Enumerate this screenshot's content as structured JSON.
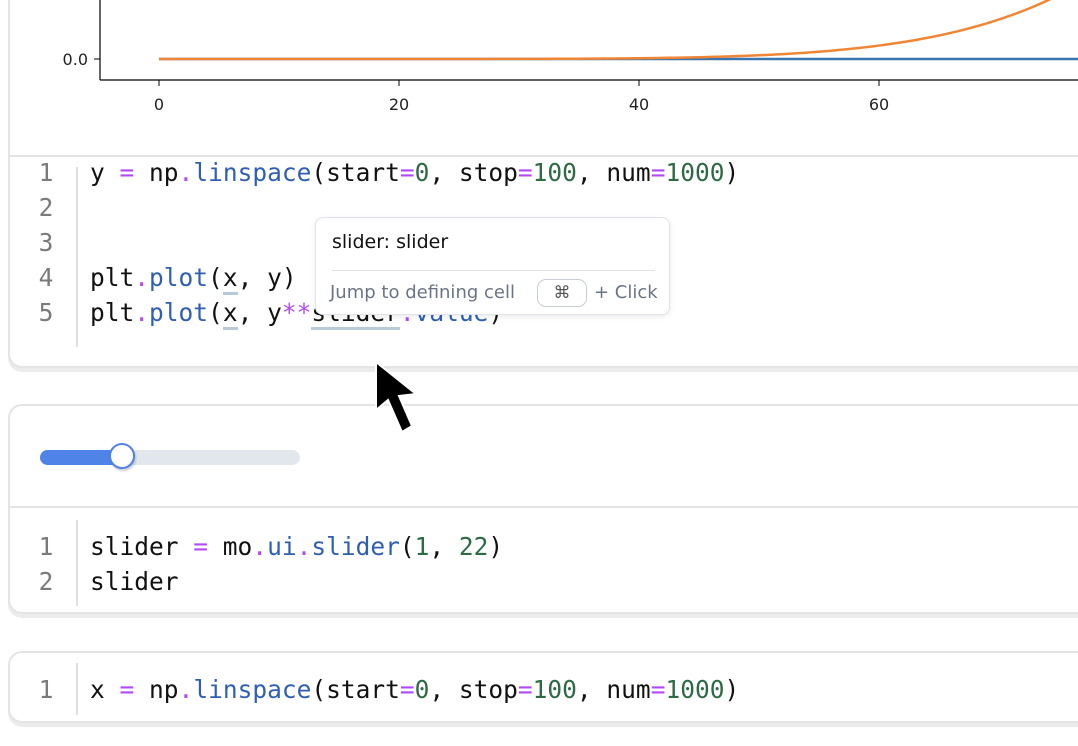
{
  "plot_cell": {
    "chart_data": {
      "type": "line",
      "x_ticks": [
        "0",
        "20",
        "40",
        "60"
      ],
      "y_ticks": [
        "0.0"
      ],
      "series": [
        {
          "expression": "y",
          "color": "#3b75af"
        },
        {
          "expression": "y**slider.value",
          "color": "#ef8636"
        }
      ],
      "x_range": [
        0,
        100
      ]
    },
    "code_lines": [
      {
        "n": "1",
        "tokens": [
          [
            "y",
            "t-plain"
          ],
          [
            " = ",
            "t-op"
          ],
          [
            "np",
            "t-plain"
          ],
          [
            ".",
            "t-op"
          ],
          [
            "linspace",
            "t-fn"
          ],
          [
            "(start",
            "t-plain"
          ],
          [
            "=",
            "t-op"
          ],
          [
            "0",
            "t-num"
          ],
          [
            ", stop",
            "t-plain"
          ],
          [
            "=",
            "t-op"
          ],
          [
            "100",
            "t-num"
          ],
          [
            ", num",
            "t-plain"
          ],
          [
            "=",
            "t-op"
          ],
          [
            "1000",
            "t-num"
          ],
          [
            ")",
            "t-plain"
          ]
        ]
      },
      {
        "n": "2",
        "tokens": []
      },
      {
        "n": "3",
        "tokens": []
      },
      {
        "n": "4",
        "tokens": [
          [
            "plt",
            "t-plain"
          ],
          [
            ".",
            "t-op"
          ],
          [
            "plot",
            "t-fn"
          ],
          [
            "(",
            "t-plain"
          ],
          [
            "x",
            "t-plain ul"
          ],
          [
            ", y)",
            "t-plain"
          ]
        ]
      },
      {
        "n": "5",
        "tokens": [
          [
            "plt",
            "t-plain"
          ],
          [
            ".",
            "t-op"
          ],
          [
            "plot",
            "t-fn"
          ],
          [
            "(",
            "t-plain"
          ],
          [
            "x",
            "t-plain ul"
          ],
          [
            ", y",
            "t-plain"
          ],
          [
            "**",
            "t-op"
          ],
          [
            "slider",
            "t-plain ul"
          ],
          [
            ".",
            "t-op"
          ],
          [
            "value",
            "t-fn"
          ],
          [
            ")",
            "t-plain"
          ]
        ]
      }
    ]
  },
  "tooltip": {
    "title": "slider: slider",
    "hint": "Jump to defining cell",
    "key": "⌘",
    "suffix": "+ Click"
  },
  "slider_cell": {
    "slider": {
      "min": 1,
      "max": 22,
      "value": 7,
      "accent": "#4f83e8"
    },
    "code_lines": [
      {
        "n": "1",
        "tokens": [
          [
            "slider",
            "t-plain"
          ],
          [
            " = ",
            "t-op"
          ],
          [
            "mo",
            "t-plain"
          ],
          [
            ".",
            "t-op"
          ],
          [
            "ui",
            "t-fn"
          ],
          [
            ".",
            "t-op"
          ],
          [
            "slider",
            "t-fn"
          ],
          [
            "(",
            "t-plain"
          ],
          [
            "1",
            "t-num"
          ],
          [
            ", ",
            "t-plain"
          ],
          [
            "22",
            "t-num"
          ],
          [
            ")",
            "t-plain"
          ]
        ]
      },
      {
        "n": "2",
        "tokens": [
          [
            "slider",
            "t-plain"
          ]
        ]
      }
    ]
  },
  "x_cell": {
    "code_lines": [
      {
        "n": "1",
        "tokens": [
          [
            "x",
            "t-plain"
          ],
          [
            " = ",
            "t-op"
          ],
          [
            "np",
            "t-plain"
          ],
          [
            ".",
            "t-op"
          ],
          [
            "linspace",
            "t-fn"
          ],
          [
            "(start",
            "t-plain"
          ],
          [
            "=",
            "t-op"
          ],
          [
            "0",
            "t-num"
          ],
          [
            ", stop",
            "t-plain"
          ],
          [
            "=",
            "t-op"
          ],
          [
            "100",
            "t-num"
          ],
          [
            ", num",
            "t-plain"
          ],
          [
            "=",
            "t-op"
          ],
          [
            "1000",
            "t-num"
          ],
          [
            ")",
            "t-plain"
          ]
        ]
      }
    ]
  }
}
